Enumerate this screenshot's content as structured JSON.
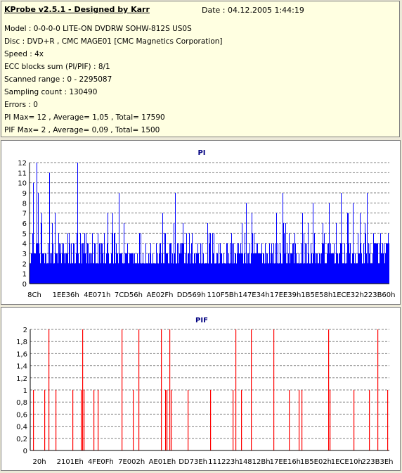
{
  "header": {
    "title": "KProbe v2.5.1 - Designed by Karr",
    "date": "Date : 04.12.2005 1:44:19"
  },
  "info_lines": [
    "Model : 0-0-0-0 LITE-ON DVDRW SOHW-812S  US0S",
    "Disc : DVD+R , CMC MAGE01 [CMC Magnetics Corporation]",
    "Speed : 4x",
    "ECC blocks sum (PI/PIF) : 8/1",
    "Scanned range : 0 - 2295087",
    "Sampling count : 130490",
    "Errors : 0",
    "PI Max= 12 , Average= 1,05 , Total= 17590",
    "PIF Max= 2 , Average= 0,09 , Total= 1500"
  ],
  "chart_data": [
    {
      "type": "bar",
      "title": "PI",
      "color": "#0000ff",
      "ylim": [
        0,
        12
      ],
      "y_ticks": [
        "0",
        "1",
        "2",
        "3",
        "4",
        "5",
        "6",
        "7",
        "8",
        "9",
        "10",
        "11",
        "12"
      ],
      "x_ticks": [
        "8Ch",
        "1EE36h",
        "4E071h",
        "7CD56h",
        "AE02Fh",
        "DD569h",
        "110F5Bh",
        "147E34h",
        "17EE39h",
        "1B5E58h",
        "1ECE32h",
        "223B60h"
      ],
      "grid": true,
      "max": 12,
      "average": 1.05,
      "total": 17590
    },
    {
      "type": "bar",
      "title": "PIF",
      "color": "#ff0000",
      "ylim": [
        0,
        2
      ],
      "y_ticks": [
        "0",
        "0,2",
        "0,4",
        "0,6",
        "0,8",
        "1",
        "1,2",
        "1,4",
        "1,6",
        "1,8",
        "2"
      ],
      "x_ticks": [
        "20h",
        "2101Eh",
        "4FE0Fh",
        "7E002h",
        "AE01Eh",
        "DD73Eh",
        "111223h",
        "14812Bh",
        "17EE16h",
        "1B5E02h",
        "1ECE10h",
        "223B3Eh"
      ],
      "grid": true,
      "max": 2,
      "average": 0.09,
      "total": 1500
    }
  ]
}
